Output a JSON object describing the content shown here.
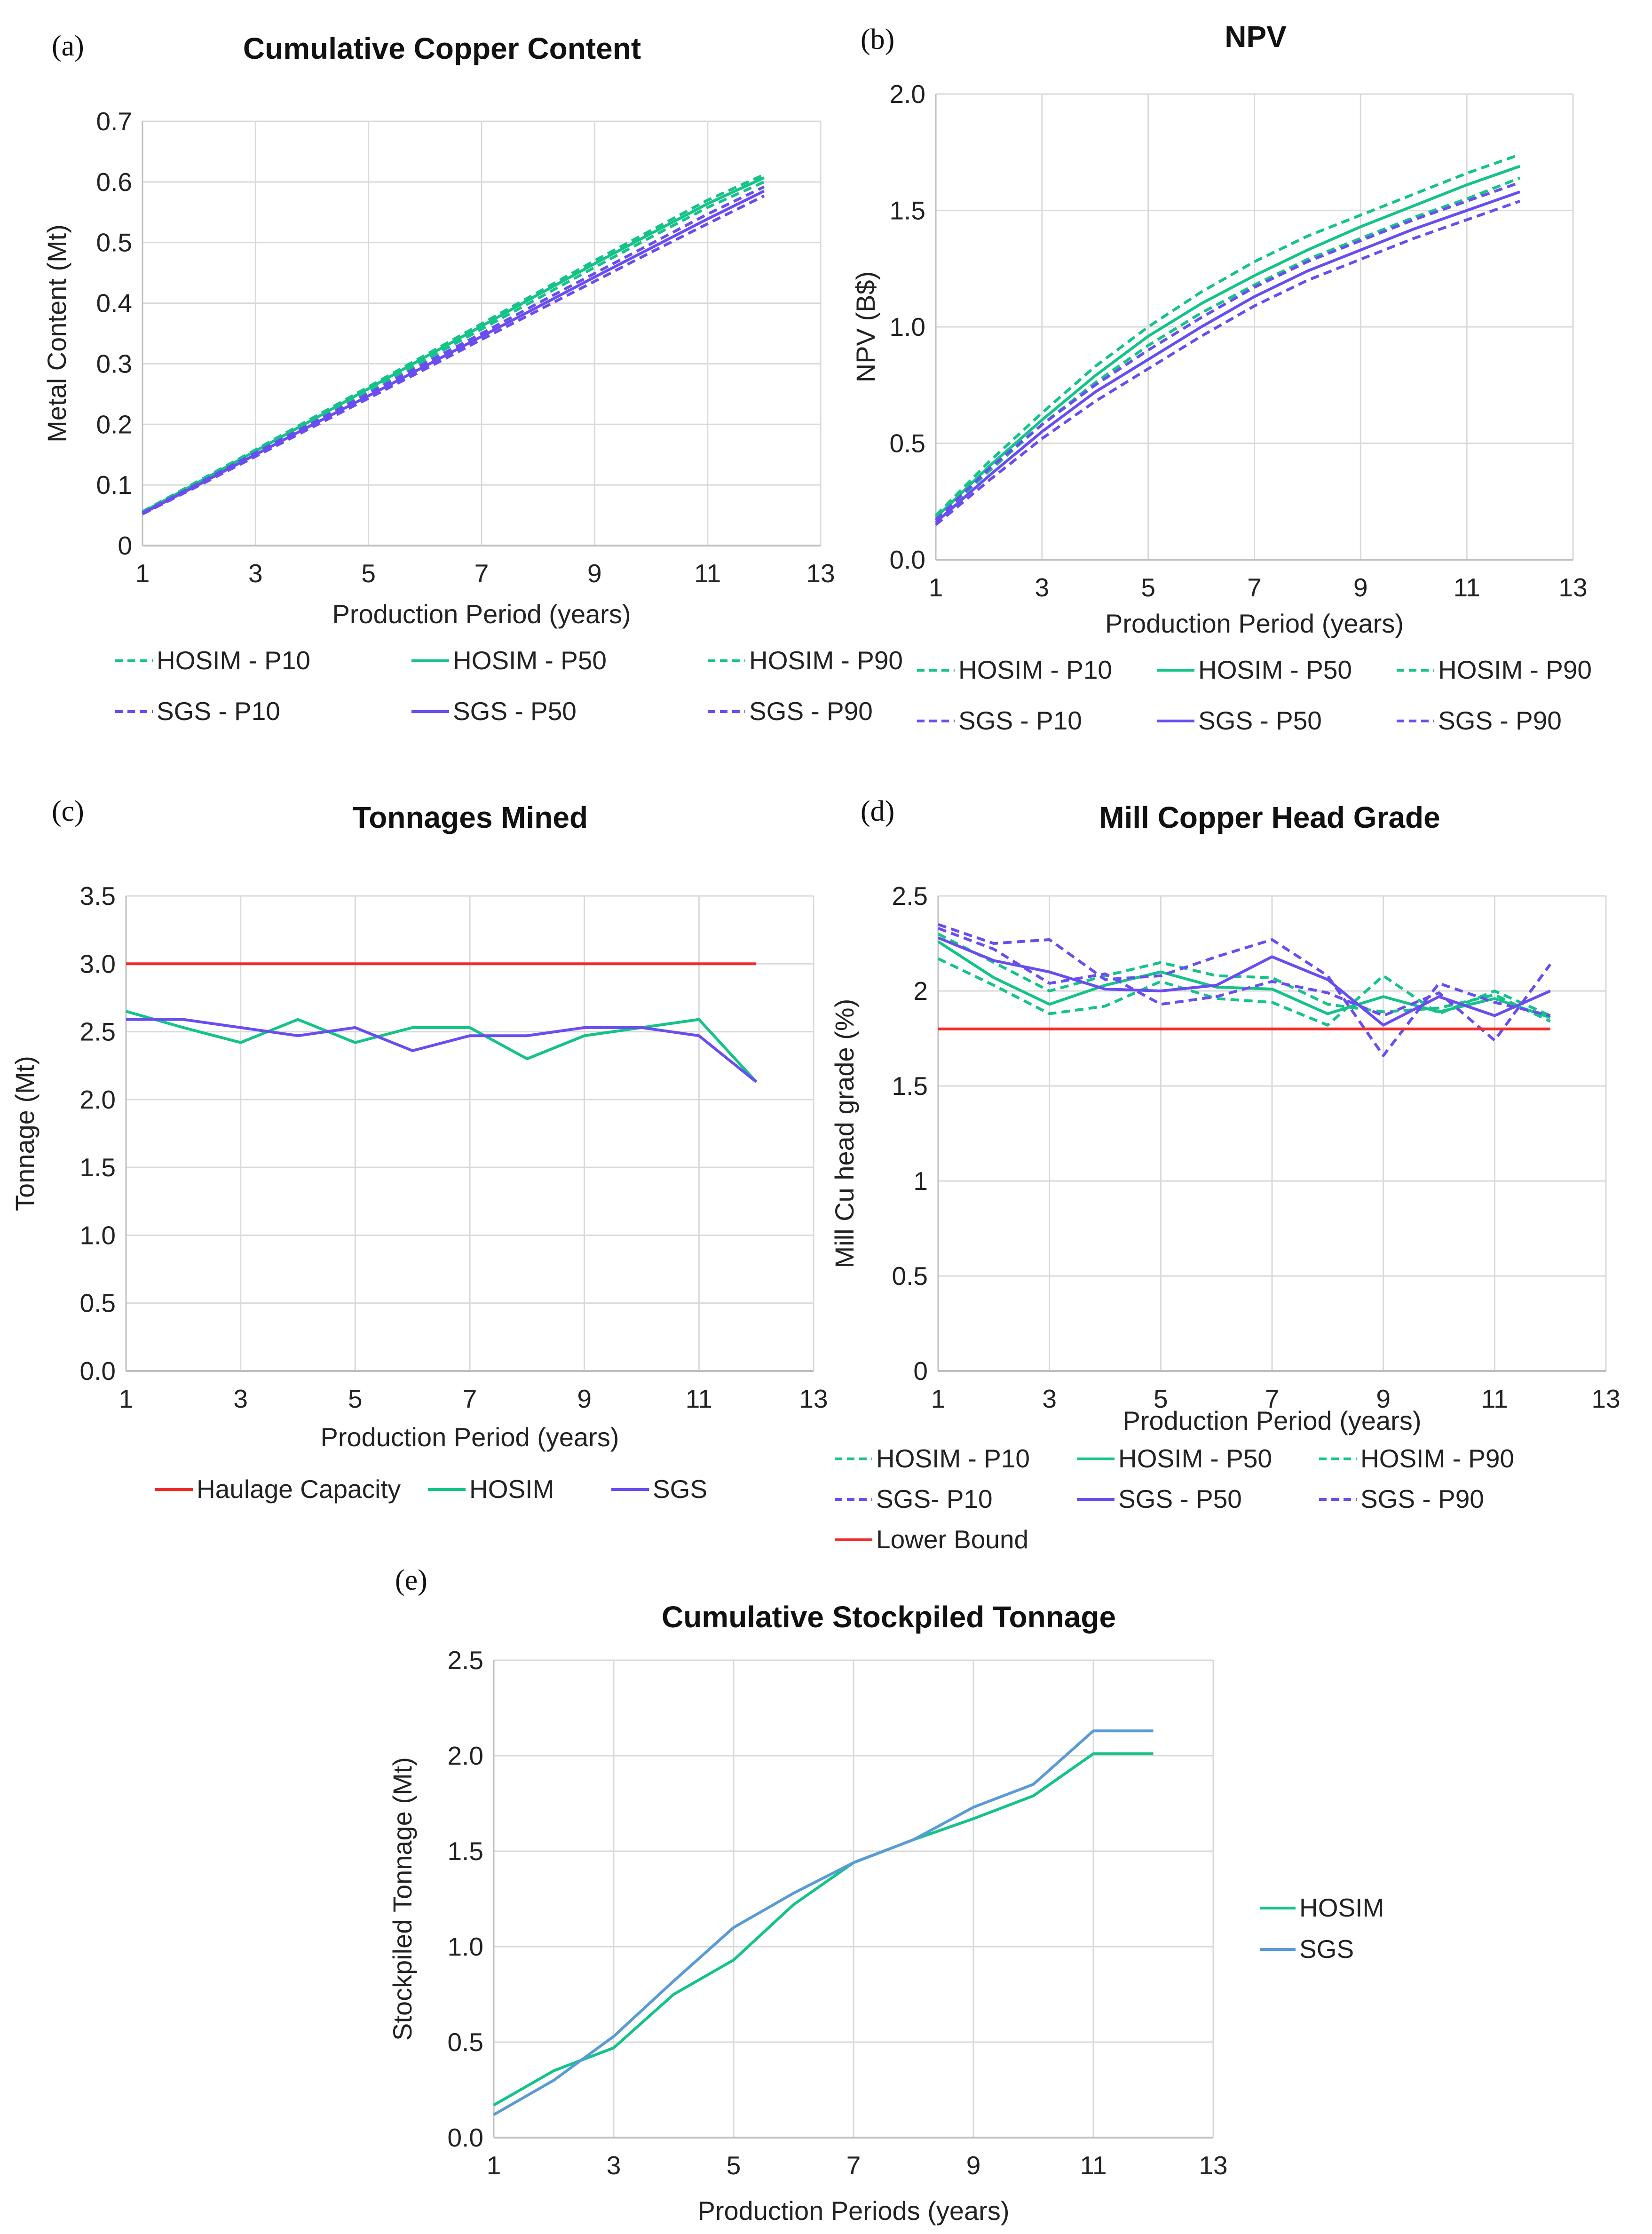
{
  "colors": {
    "hosim": "#14c389",
    "sgs": "#6a4df0",
    "red": "#f02c2c",
    "blue": "#5b9bd5",
    "grid": "#d9d9d9",
    "axis": "#bfbfbf"
  },
  "chart_data": [
    {
      "id": "a",
      "letter": "(a)",
      "type": "line",
      "title": "Cumulative Copper Content",
      "xlabel": "Production Period (years)",
      "ylabel": "Metal Content  (Mt)",
      "xlim": [
        1,
        13
      ],
      "xticks": [
        1,
        3,
        5,
        7,
        9,
        11,
        13
      ],
      "ylim": [
        0,
        0.7
      ],
      "yticks": [
        0,
        0.1,
        0.2,
        0.3,
        0.4,
        0.5,
        0.6,
        0.7
      ],
      "ytick_labels": [
        "0",
        "0.1",
        "0.2",
        "0.3",
        "0.4",
        "0.5",
        "0.6",
        "0.7"
      ],
      "grid": true,
      "legend_cols": 3,
      "series": [
        {
          "name": "HOSIM - P10",
          "color": "hosim",
          "dash": true,
          "x": [
            1,
            2,
            3,
            4,
            5,
            6,
            7,
            8,
            9,
            10,
            11,
            12
          ],
          "y": [
            0.056,
            0.107,
            0.158,
            0.21,
            0.262,
            0.314,
            0.366,
            0.418,
            0.47,
            0.52,
            0.57,
            0.612
          ]
        },
        {
          "name": "HOSIM - P50",
          "color": "hosim",
          "dash": false,
          "x": [
            1,
            2,
            3,
            4,
            5,
            6,
            7,
            8,
            9,
            10,
            11,
            12
          ],
          "y": [
            0.055,
            0.105,
            0.156,
            0.207,
            0.259,
            0.311,
            0.362,
            0.414,
            0.465,
            0.515,
            0.564,
            0.607
          ]
        },
        {
          "name": "HOSIM - P90",
          "color": "hosim",
          "dash": true,
          "x": [
            1,
            2,
            3,
            4,
            5,
            6,
            7,
            8,
            9,
            10,
            11,
            12
          ],
          "y": [
            0.054,
            0.103,
            0.153,
            0.204,
            0.255,
            0.306,
            0.357,
            0.408,
            0.459,
            0.509,
            0.558,
            0.6
          ]
        },
        {
          "name": "SGS - P10",
          "color": "sgs",
          "dash": true,
          "x": [
            1,
            2,
            3,
            4,
            5,
            6,
            7,
            8,
            9,
            10,
            11,
            12
          ],
          "y": [
            0.054,
            0.103,
            0.153,
            0.202,
            0.251,
            0.301,
            0.35,
            0.4,
            0.449,
            0.498,
            0.547,
            0.592
          ]
        },
        {
          "name": "SGS - P50",
          "color": "sgs",
          "dash": false,
          "x": [
            1,
            2,
            3,
            4,
            5,
            6,
            7,
            8,
            9,
            10,
            11,
            12
          ],
          "y": [
            0.053,
            0.101,
            0.15,
            0.199,
            0.247,
            0.296,
            0.345,
            0.394,
            0.443,
            0.491,
            0.539,
            0.585
          ]
        },
        {
          "name": "SGS - P90",
          "color": "sgs",
          "dash": true,
          "x": [
            1,
            2,
            3,
            4,
            5,
            6,
            7,
            8,
            9,
            10,
            11,
            12
          ],
          "y": [
            0.052,
            0.099,
            0.147,
            0.195,
            0.243,
            0.291,
            0.34,
            0.388,
            0.436,
            0.484,
            0.531,
            0.577
          ]
        }
      ]
    },
    {
      "id": "b",
      "letter": "(b)",
      "type": "line",
      "title": "NPV",
      "xlabel": "Production Period (years)",
      "ylabel": "NPV (B$)",
      "xlim": [
        1,
        13
      ],
      "xticks": [
        1,
        3,
        5,
        7,
        9,
        11,
        13
      ],
      "ylim": [
        0,
        2
      ],
      "yticks": [
        0,
        0.5,
        1,
        1.5,
        2
      ],
      "ytick_labels": [
        "0.0",
        "0.5",
        "1.0",
        "1.5",
        "2.0"
      ],
      "grid": true,
      "legend_cols": 3,
      "series": [
        {
          "name": "HOSIM - P10",
          "color": "hosim",
          "dash": true,
          "x": [
            1,
            2,
            3,
            4,
            5,
            6,
            7,
            8,
            9,
            10,
            11,
            12
          ],
          "y": [
            0.19,
            0.42,
            0.63,
            0.83,
            1.0,
            1.15,
            1.28,
            1.39,
            1.48,
            1.57,
            1.66,
            1.74
          ]
        },
        {
          "name": "HOSIM - P50",
          "color": "hosim",
          "dash": false,
          "x": [
            1,
            2,
            3,
            4,
            5,
            6,
            7,
            8,
            9,
            10,
            11,
            12
          ],
          "y": [
            0.18,
            0.4,
            0.6,
            0.79,
            0.96,
            1.1,
            1.22,
            1.33,
            1.43,
            1.52,
            1.61,
            1.69
          ]
        },
        {
          "name": "HOSIM - P90",
          "color": "hosim",
          "dash": true,
          "x": [
            1,
            2,
            3,
            4,
            5,
            6,
            7,
            8,
            9,
            10,
            11,
            12
          ],
          "y": [
            0.17,
            0.38,
            0.58,
            0.76,
            0.92,
            1.06,
            1.18,
            1.29,
            1.38,
            1.47,
            1.55,
            1.64
          ]
        },
        {
          "name": "SGS - P10",
          "color": "sgs",
          "dash": true,
          "x": [
            1,
            2,
            3,
            4,
            5,
            6,
            7,
            8,
            9,
            10,
            11,
            12
          ],
          "y": [
            0.17,
            0.39,
            0.58,
            0.75,
            0.9,
            1.04,
            1.17,
            1.28,
            1.37,
            1.46,
            1.54,
            1.62
          ]
        },
        {
          "name": "SGS - P50",
          "color": "sgs",
          "dash": false,
          "x": [
            1,
            2,
            3,
            4,
            5,
            6,
            7,
            8,
            9,
            10,
            11,
            12
          ],
          "y": [
            0.16,
            0.36,
            0.55,
            0.72,
            0.86,
            1.0,
            1.13,
            1.24,
            1.33,
            1.42,
            1.5,
            1.58
          ]
        },
        {
          "name": "SGS - P90",
          "color": "sgs",
          "dash": true,
          "x": [
            1,
            2,
            3,
            4,
            5,
            6,
            7,
            8,
            9,
            10,
            11,
            12
          ],
          "y": [
            0.15,
            0.34,
            0.52,
            0.68,
            0.82,
            0.96,
            1.09,
            1.2,
            1.29,
            1.38,
            1.46,
            1.54
          ]
        }
      ]
    },
    {
      "id": "c",
      "letter": "(c)",
      "type": "line",
      "title": "Tonnages Mined",
      "xlabel": "Production Period (years)",
      "ylabel": "Tonnage (Mt)",
      "xlim": [
        1,
        13
      ],
      "xticks": [
        1,
        3,
        5,
        7,
        9,
        11,
        13
      ],
      "ylim": [
        0,
        3.5
      ],
      "yticks": [
        0,
        0.5,
        1,
        1.5,
        2,
        2.5,
        3,
        3.5
      ],
      "ytick_labels": [
        "0.0",
        "0.5",
        "1.0",
        "1.5",
        "2.0",
        "2.5",
        "3.0",
        "3.5"
      ],
      "grid": true,
      "legend_cols": 3,
      "series": [
        {
          "name": "Haulage Capacity",
          "color": "red",
          "dash": false,
          "x": [
            1,
            12
          ],
          "y": [
            3.0,
            3.0
          ]
        },
        {
          "name": "HOSIM",
          "color": "hosim",
          "dash": false,
          "x": [
            1,
            2,
            3,
            4,
            5,
            6,
            7,
            8,
            9,
            10,
            11,
            12
          ],
          "y": [
            2.65,
            2.53,
            2.42,
            2.59,
            2.42,
            2.53,
            2.53,
            2.3,
            2.47,
            2.53,
            2.59,
            2.13
          ]
        },
        {
          "name": "SGS",
          "color": "sgs",
          "dash": false,
          "x": [
            1,
            2,
            3,
            4,
            5,
            6,
            7,
            8,
            9,
            10,
            11,
            12
          ],
          "y": [
            2.59,
            2.59,
            2.53,
            2.47,
            2.53,
            2.36,
            2.47,
            2.47,
            2.53,
            2.53,
            2.47,
            2.13
          ]
        }
      ]
    },
    {
      "id": "d",
      "letter": "(d)",
      "type": "line",
      "title": "Mill Copper Head Grade",
      "xlabel": "Production Period (years)",
      "ylabel": "Mill Cu head grade (%)",
      "xlim": [
        1,
        13
      ],
      "xticks": [
        1,
        3,
        5,
        7,
        9,
        11,
        13
      ],
      "ylim": [
        0,
        2.5
      ],
      "yticks": [
        0,
        0.5,
        1,
        1.5,
        2,
        2.5
      ],
      "ytick_labels": [
        "0",
        "0.5",
        "1",
        "1.5",
        "2",
        "2.5"
      ],
      "grid": true,
      "legend_cols": 3,
      "series": [
        {
          "name": "HOSIM - P10",
          "color": "hosim",
          "dash": true,
          "x": [
            1,
            2,
            3,
            4,
            5,
            6,
            7,
            8,
            9,
            10,
            11,
            12
          ],
          "y": [
            2.17,
            2.03,
            1.88,
            1.92,
            2.05,
            1.96,
            1.94,
            1.82,
            2.08,
            1.88,
            2.0,
            1.87
          ]
        },
        {
          "name": "HOSIM - P50",
          "color": "hosim",
          "dash": false,
          "x": [
            1,
            2,
            3,
            4,
            5,
            6,
            7,
            8,
            9,
            10,
            11,
            12
          ],
          "y": [
            2.26,
            2.07,
            1.93,
            2.03,
            2.1,
            2.02,
            2.01,
            1.88,
            1.97,
            1.89,
            1.96,
            1.86
          ]
        },
        {
          "name": "HOSIM - P90",
          "color": "hosim",
          "dash": true,
          "x": [
            1,
            2,
            3,
            4,
            5,
            6,
            7,
            8,
            9,
            10,
            11,
            12
          ],
          "y": [
            2.3,
            2.15,
            2.0,
            2.08,
            2.15,
            2.08,
            2.07,
            1.93,
            1.89,
            1.91,
            1.98,
            1.84
          ]
        },
        {
          "name": "SGS- P10",
          "color": "sgs",
          "dash": true,
          "x": [
            1,
            2,
            3,
            4,
            5,
            6,
            7,
            8,
            9,
            10,
            11,
            12
          ],
          "y": [
            2.33,
            2.22,
            2.04,
            2.09,
            1.93,
            1.97,
            2.05,
            1.99,
            1.87,
            1.99,
            1.74,
            2.14
          ]
        },
        {
          "name": "SGS - P50",
          "color": "sgs",
          "dash": false,
          "x": [
            1,
            2,
            3,
            4,
            5,
            6,
            7,
            8,
            9,
            10,
            11,
            12
          ],
          "y": [
            2.28,
            2.16,
            2.1,
            2.01,
            2.0,
            2.03,
            2.18,
            2.06,
            1.82,
            1.97,
            1.87,
            2.0
          ]
        },
        {
          "name": "SGS - P90",
          "color": "sgs",
          "dash": true,
          "x": [
            1,
            2,
            3,
            4,
            5,
            6,
            7,
            8,
            9,
            10,
            11,
            12
          ],
          "y": [
            2.35,
            2.25,
            2.27,
            2.06,
            2.08,
            2.18,
            2.27,
            2.08,
            1.66,
            2.04,
            1.94,
            1.87
          ]
        },
        {
          "name": "Lower Bound",
          "color": "red",
          "dash": false,
          "x": [
            1,
            12
          ],
          "y": [
            1.8,
            1.8
          ]
        }
      ]
    },
    {
      "id": "e",
      "letter": "(e)",
      "type": "line",
      "title": "Cumulative Stockpiled Tonnage",
      "xlabel": "Production Periods (years)",
      "ylabel": "Stockpiled Tonnage (Mt)",
      "xlim": [
        1,
        13
      ],
      "xticks": [
        1,
        3,
        5,
        7,
        9,
        11,
        13
      ],
      "ylim": [
        0,
        2.5
      ],
      "yticks": [
        0,
        0.5,
        1,
        1.5,
        2,
        2.5
      ],
      "ytick_labels": [
        "0.0",
        "0.5",
        "1.0",
        "1.5",
        "2.0",
        "2.5"
      ],
      "grid": true,
      "legend_cols": 1,
      "series": [
        {
          "name": "HOSIM",
          "color": "hosim",
          "dash": false,
          "x": [
            1,
            2,
            3,
            4,
            5,
            6,
            7,
            8,
            9,
            10,
            11,
            12
          ],
          "y": [
            0.17,
            0.35,
            0.47,
            0.75,
            0.93,
            1.22,
            1.44,
            1.56,
            1.67,
            1.79,
            2.01,
            2.01
          ]
        },
        {
          "name": "SGS",
          "color": "blue",
          "dash": false,
          "x": [
            1,
            2,
            3,
            4,
            5,
            6,
            7,
            8,
            9,
            10,
            11,
            12
          ],
          "y": [
            0.12,
            0.3,
            0.53,
            0.82,
            1.1,
            1.28,
            1.44,
            1.56,
            1.73,
            1.85,
            2.13,
            2.13
          ]
        }
      ]
    }
  ]
}
